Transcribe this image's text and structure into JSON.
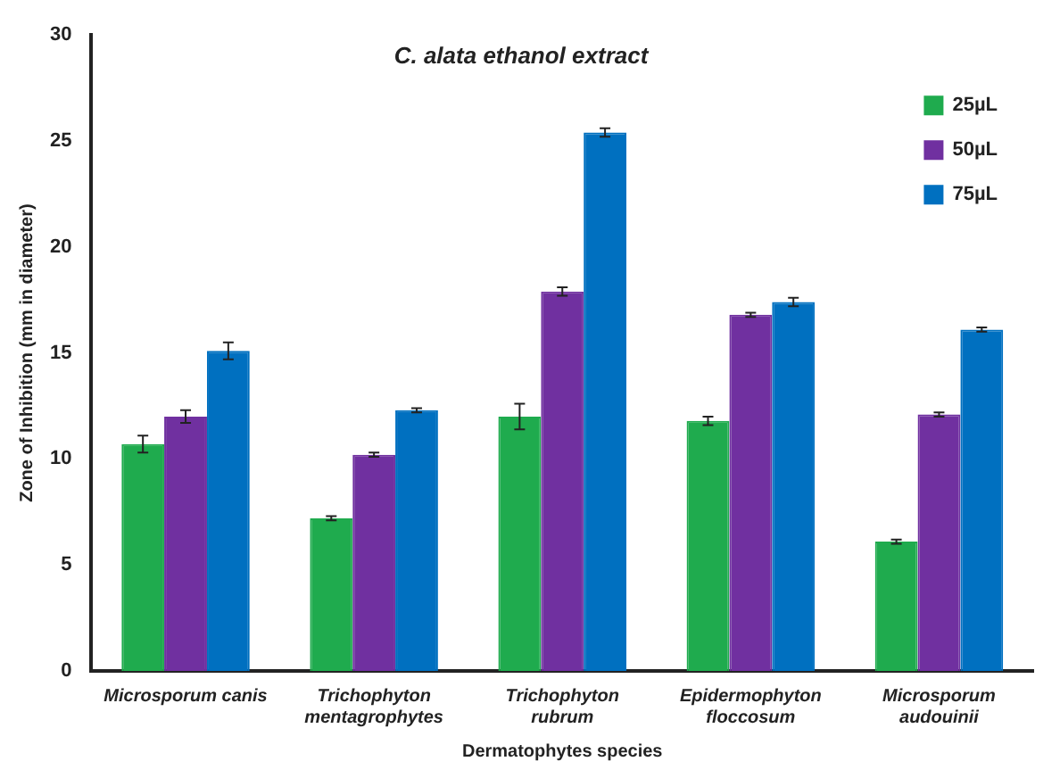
{
  "chart_data": {
    "type": "bar",
    "title": "C. alata ethanol extract",
    "xlabel": "Dermatophytes species",
    "ylabel": "Zone of Inhibition (mm in diameter)",
    "categories": [
      "Microsporum canis",
      "Trichophyton mentagrophytes",
      "Trichophyton rubrum",
      "Epidermophyton floccosum",
      "Microsporum audouinii"
    ],
    "series": [
      {
        "name": "25µL",
        "color": "#1fab4e",
        "values": [
          10.7,
          7.2,
          12.0,
          11.8,
          6.1
        ],
        "errors": [
          0.4,
          0.1,
          0.6,
          0.2,
          0.1
        ]
      },
      {
        "name": "50µL",
        "color": "#7030a0",
        "values": [
          12.0,
          10.2,
          17.9,
          16.8,
          12.1
        ],
        "errors": [
          0.3,
          0.1,
          0.2,
          0.1,
          0.1
        ]
      },
      {
        "name": "75µL",
        "color": "#0070c0",
        "values": [
          15.1,
          12.3,
          25.4,
          17.4,
          16.1
        ],
        "errors": [
          0.4,
          0.1,
          0.2,
          0.2,
          0.1
        ]
      }
    ],
    "ylim": [
      0,
      30
    ],
    "yticks": [
      0,
      5,
      10,
      15,
      20,
      25,
      30
    ],
    "grid": false,
    "legend": "top right"
  }
}
